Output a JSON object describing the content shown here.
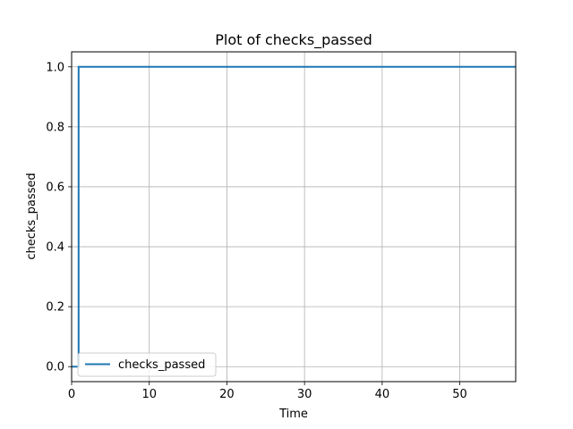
{
  "chart_data": {
    "type": "line",
    "title": "Plot of checks_passed",
    "xlabel": "Time",
    "ylabel": "checks_passed",
    "xlim": [
      0,
      57.2
    ],
    "ylim": [
      -0.05,
      1.05
    ],
    "xticks": [
      0,
      10,
      20,
      30,
      40,
      50
    ],
    "yticks": [
      0.0,
      0.2,
      0.4,
      0.6,
      0.8,
      1.0
    ],
    "xtick_labels": [
      "0",
      "10",
      "20",
      "30",
      "40",
      "50"
    ],
    "ytick_labels": [
      "0.0",
      "0.2",
      "0.4",
      "0.6",
      "0.8",
      "1.0"
    ],
    "grid": true,
    "legend_position": "lower-left",
    "series": [
      {
        "name": "checks_passed",
        "color": "#1f77b4",
        "step": "post",
        "x": [
          0,
          0.9,
          57.2
        ],
        "y": [
          0,
          1,
          1
        ]
      }
    ]
  }
}
